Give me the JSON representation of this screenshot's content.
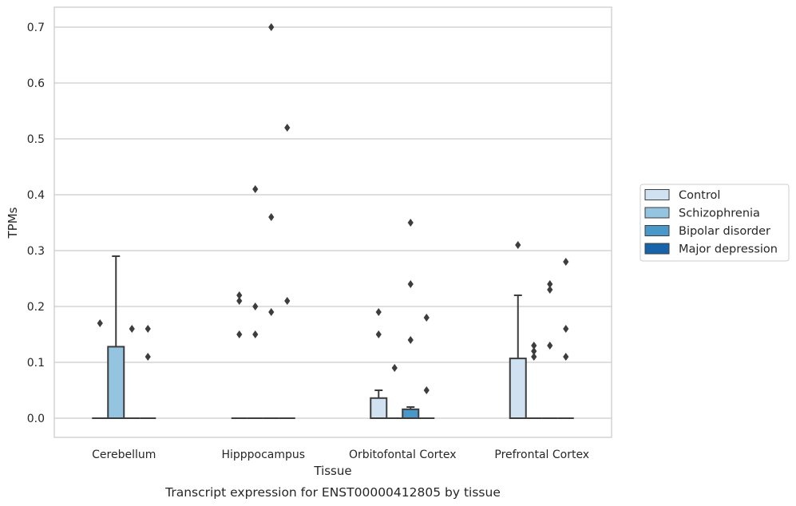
{
  "chart_data": {
    "type": "box",
    "caption": "Transcript expression for ENST00000412805 by tissue",
    "xlabel": "Tissue",
    "ylabel": "TPMs",
    "ylim": [
      -0.034,
      0.736
    ],
    "yticks": [
      "0.0",
      "0.1",
      "0.2",
      "0.3",
      "0.4",
      "0.5",
      "0.6",
      "0.7"
    ],
    "grid": true,
    "legend_placement": "right",
    "categories": [
      "Cerebellum",
      "Hipppocampus",
      "Orbitofontal Cortex",
      "Prefrontal Cortex"
    ],
    "series": [
      {
        "name": "Control",
        "color": "#d0e1f2",
        "boxes": [
          {
            "q1": 0,
            "median": 0,
            "q3": 0,
            "whisker_low": 0,
            "whisker_high": 0,
            "outliers": [
              0.17
            ]
          },
          {
            "q1": 0,
            "median": 0,
            "q3": 0,
            "whisker_low": 0,
            "whisker_high": 0,
            "outliers": [
              0.15,
              0.21,
              0.22
            ]
          },
          {
            "q1": 0,
            "median": 0,
            "q3": 0.036,
            "whisker_low": 0,
            "whisker_high": 0.05,
            "outliers": [
              0.15,
              0.19
            ]
          },
          {
            "q1": 0,
            "median": 0,
            "q3": 0.107,
            "whisker_low": 0,
            "whisker_high": 0.22,
            "outliers": [
              0.31
            ]
          }
        ]
      },
      {
        "name": "Schizophrenia",
        "color": "#94c4df",
        "boxes": [
          {
            "q1": 0,
            "median": 0,
            "q3": 0.128,
            "whisker_low": 0,
            "whisker_high": 0.29,
            "outliers": []
          },
          {
            "q1": 0,
            "median": 0,
            "q3": 0,
            "whisker_low": 0,
            "whisker_high": 0,
            "outliers": [
              0.15,
              0.2,
              0.41
            ]
          },
          {
            "q1": 0,
            "median": 0,
            "q3": 0,
            "whisker_low": 0,
            "whisker_high": 0,
            "outliers": [
              0.09
            ]
          },
          {
            "q1": 0,
            "median": 0,
            "q3": 0,
            "whisker_low": 0,
            "whisker_high": 0,
            "outliers": [
              0.11,
              0.12,
              0.13
            ]
          }
        ]
      },
      {
        "name": "Bipolar disorder",
        "color": "#4a98c9",
        "boxes": [
          {
            "q1": 0,
            "median": 0,
            "q3": 0,
            "whisker_low": 0,
            "whisker_high": 0,
            "outliers": [
              0.16
            ]
          },
          {
            "q1": 0,
            "median": 0,
            "q3": 0,
            "whisker_low": 0,
            "whisker_high": 0,
            "outliers": [
              0.19,
              0.36,
              0.7
            ]
          },
          {
            "q1": 0,
            "median": 0,
            "q3": 0.016,
            "whisker_low": 0,
            "whisker_high": 0.02,
            "outliers": [
              0.14,
              0.24,
              0.35
            ]
          },
          {
            "q1": 0,
            "median": 0,
            "q3": 0,
            "whisker_low": 0,
            "whisker_high": 0,
            "outliers": [
              0.13,
              0.23,
              0.24
            ]
          }
        ]
      },
      {
        "name": "Major depression",
        "color": "#1764ab",
        "boxes": [
          {
            "q1": 0,
            "median": 0,
            "q3": 0,
            "whisker_low": 0,
            "whisker_high": 0,
            "outliers": [
              0.11,
              0.16
            ]
          },
          {
            "q1": 0,
            "median": 0,
            "q3": 0,
            "whisker_low": 0,
            "whisker_high": 0,
            "outliers": [
              0.21,
              0.52
            ]
          },
          {
            "q1": 0,
            "median": 0,
            "q3": 0,
            "whisker_low": 0,
            "whisker_high": 0,
            "outliers": [
              0.05,
              0.18
            ]
          },
          {
            "q1": 0,
            "median": 0,
            "q3": 0,
            "whisker_low": 0,
            "whisker_high": 0,
            "outliers": [
              0.11,
              0.16,
              0.28
            ]
          }
        ]
      }
    ]
  }
}
